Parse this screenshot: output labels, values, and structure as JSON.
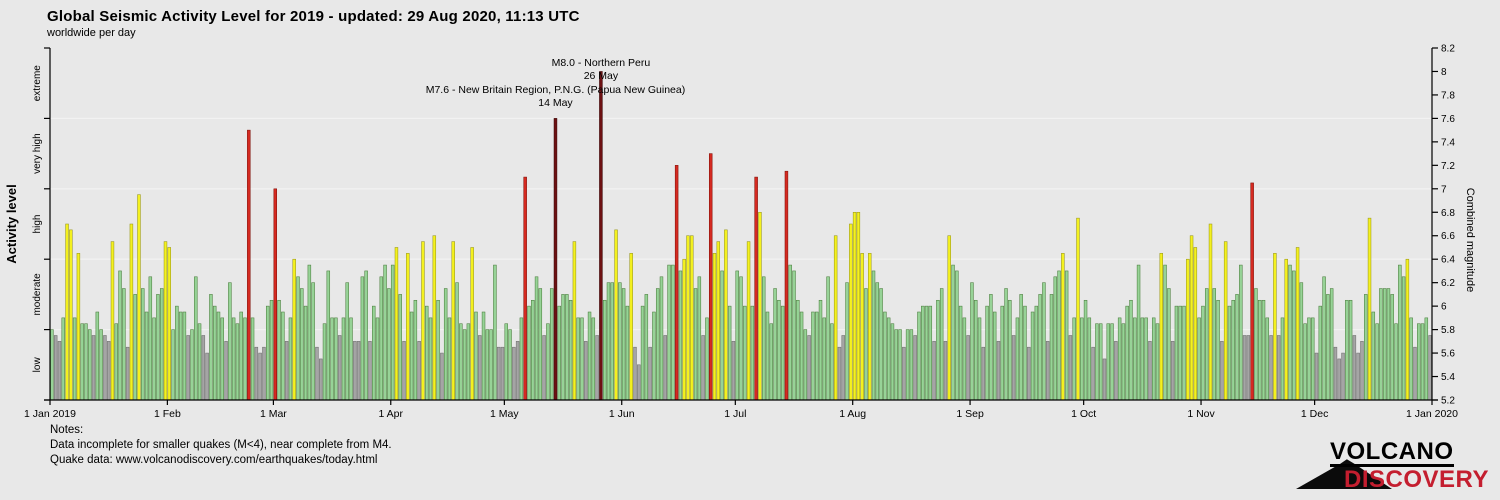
{
  "header": {
    "title": "Global Seismic Activity Level for 2019 - updated: 29 Aug 2020, 11:13 UTC",
    "subtitle": "worldwide per day"
  },
  "colors": {
    "background": "#e8e8e8",
    "gridline": "#f2f2f2",
    "axis": "#000000",
    "low": "#a5a5a5",
    "low_border": "#6f6f6f",
    "moderate": "#97d397",
    "moderate_border": "#4a7d3c",
    "high": "#f4f11f",
    "high_border": "#98961c",
    "very_high": "#d52a21",
    "very_high_border": "#811109",
    "extreme": "#6d1012",
    "extreme_border": "#3a0707",
    "logo_red": "#c41e2f"
  },
  "notes": {
    "heading": "Notes:",
    "line1": "Data incomplete for smaller quakes (M<4), near complete from M4.",
    "line2": "Quake data: www.volcanodiscovery.com/earthquakes/today.html"
  },
  "logo": {
    "line1": "VOLCANO",
    "line2": "DISCOVERY"
  },
  "chart_data": {
    "type": "bar",
    "title": "Global Seismic Activity Level for 2019 - updated: 29 Aug 2020, 11:13 UTC",
    "subtitle": "worldwide per day",
    "x_unit": "day",
    "x_start": "1 Jan 2019",
    "x_end": "1 Jan 2020",
    "ylabel_left": "Activity level",
    "ylabel_right": "Combined magnitude",
    "ylim": [
      5.2,
      8.2
    ],
    "right_tick_step": 0.2,
    "activity_levels": [
      "extreme",
      "very high",
      "high",
      "moderate",
      "low"
    ],
    "level_ranges": {
      "low": [
        5.2,
        5.8
      ],
      "moderate": [
        5.8,
        6.4
      ],
      "high": [
        6.4,
        7.0
      ],
      "very_high": [
        7.0,
        7.6
      ],
      "extreme": [
        7.6,
        8.2
      ]
    },
    "month_ticks": [
      {
        "label": "1 Jan 2019",
        "day": 0
      },
      {
        "label": "1 Feb",
        "day": 31
      },
      {
        "label": "1 Mar",
        "day": 59
      },
      {
        "label": "1 Apr",
        "day": 90
      },
      {
        "label": "1 May",
        "day": 120
      },
      {
        "label": "1 Jun",
        "day": 151
      },
      {
        "label": "1 Jul",
        "day": 181
      },
      {
        "label": "1 Aug",
        "day": 212
      },
      {
        "label": "1 Sep",
        "day": 243
      },
      {
        "label": "1 Oct",
        "day": 273
      },
      {
        "label": "1 Nov",
        "day": 304
      },
      {
        "label": "1 Dec",
        "day": 334
      },
      {
        "label": "1 Jan 2020",
        "day": 365
      }
    ],
    "annotations": [
      {
        "lines": [
          "M8.0 - Northern Peru",
          "26 May"
        ],
        "day_index": 145,
        "magnitude": 8.0
      },
      {
        "lines": [
          "M7.6 - New Britain Region, P.N.G. (Papua New Guinea)",
          "14 May"
        ],
        "day_index": 133,
        "magnitude": 7.6
      }
    ],
    "daily_combined_magnitude": [
      5.8,
      5.75,
      5.7,
      5.9,
      6.7,
      6.65,
      5.9,
      6.45,
      5.85,
      5.85,
      5.8,
      5.75,
      5.95,
      5.8,
      5.75,
      5.7,
      6.55,
      5.85,
      6.3,
      6.15,
      5.65,
      6.7,
      6.1,
      6.95,
      6.15,
      5.95,
      6.25,
      5.9,
      6.1,
      6.15,
      6.55,
      6.5,
      5.8,
      6.0,
      5.95,
      5.95,
      5.75,
      5.8,
      6.25,
      5.85,
      5.75,
      5.6,
      6.1,
      6.0,
      5.95,
      5.9,
      5.7,
      6.2,
      5.9,
      5.85,
      5.95,
      5.9,
      7.5,
      5.9,
      5.65,
      5.6,
      5.65,
      6.0,
      6.05,
      7.0,
      6.05,
      5.95,
      5.7,
      5.9,
      6.4,
      6.25,
      6.15,
      6.0,
      6.35,
      6.2,
      5.65,
      5.55,
      5.85,
      6.3,
      5.9,
      5.9,
      5.75,
      5.9,
      6.2,
      5.9,
      5.7,
      5.7,
      6.25,
      6.3,
      5.7,
      6.0,
      5.9,
      6.25,
      6.35,
      6.15,
      6.35,
      6.5,
      6.1,
      5.7,
      6.45,
      5.95,
      6.05,
      5.7,
      6.55,
      6.0,
      5.9,
      6.6,
      6.05,
      5.6,
      6.15,
      5.9,
      6.55,
      6.2,
      5.85,
      5.8,
      5.85,
      6.5,
      5.95,
      5.75,
      5.95,
      5.8,
      5.8,
      6.35,
      5.65,
      5.65,
      5.85,
      5.8,
      5.65,
      5.7,
      5.9,
      7.1,
      6.0,
      6.05,
      6.25,
      6.15,
      5.75,
      5.85,
      6.15,
      7.6,
      6.0,
      6.1,
      6.1,
      6.05,
      6.55,
      5.9,
      5.9,
      5.7,
      5.95,
      5.9,
      5.75,
      8.0,
      6.05,
      6.2,
      6.2,
      6.65,
      6.2,
      6.15,
      6.0,
      6.45,
      5.65,
      5.5,
      6.0,
      6.1,
      5.65,
      5.95,
      6.15,
      6.25,
      5.75,
      6.35,
      6.35,
      7.2,
      6.3,
      6.4,
      6.6,
      6.6,
      6.15,
      6.25,
      5.75,
      5.9,
      7.3,
      6.45,
      6.55,
      6.3,
      6.65,
      6.0,
      5.7,
      6.3,
      6.25,
      6.0,
      6.55,
      6.0,
      7.1,
      6.8,
      6.25,
      5.95,
      5.85,
      6.15,
      6.05,
      6.0,
      7.15,
      6.35,
      6.3,
      6.05,
      5.95,
      5.8,
      5.75,
      5.95,
      5.95,
      6.05,
      5.9,
      6.25,
      5.85,
      6.6,
      5.65,
      5.75,
      6.2,
      6.7,
      6.8,
      6.8,
      6.45,
      6.15,
      6.45,
      6.3,
      6.2,
      6.15,
      5.95,
      5.9,
      5.85,
      5.8,
      5.8,
      5.65,
      5.8,
      5.8,
      5.75,
      5.95,
      6.0,
      6.0,
      6.0,
      5.7,
      6.05,
      6.15,
      5.7,
      6.6,
      6.35,
      6.3,
      6.0,
      5.9,
      5.75,
      6.2,
      6.05,
      5.9,
      5.65,
      6.0,
      6.1,
      5.95,
      5.7,
      6.0,
      6.15,
      6.05,
      5.75,
      5.9,
      6.1,
      6.0,
      5.65,
      5.95,
      6.0,
      6.1,
      6.2,
      5.7,
      6.1,
      6.25,
      6.3,
      6.45,
      6.3,
      5.75,
      5.9,
      6.75,
      5.9,
      6.05,
      5.9,
      5.65,
      5.85,
      5.85,
      5.55,
      5.85,
      5.85,
      5.7,
      5.9,
      5.85,
      6.0,
      6.05,
      5.9,
      6.35,
      5.9,
      5.9,
      5.7,
      5.9,
      5.85,
      6.45,
      6.35,
      6.15,
      5.7,
      6.0,
      6.0,
      6.0,
      6.4,
      6.6,
      6.5,
      5.9,
      6.0,
      6.15,
      6.7,
      6.15,
      6.05,
      5.7,
      6.55,
      6.0,
      6.05,
      6.1,
      6.35,
      5.75,
      5.75,
      7.05,
      6.15,
      6.05,
      6.05,
      5.9,
      5.75,
      6.45,
      5.75,
      5.9,
      6.4,
      6.35,
      6.3,
      6.5,
      6.2,
      5.85,
      5.9,
      5.9,
      5.6,
      6.0,
      6.25,
      6.1,
      6.15,
      5.65,
      5.55,
      5.6,
      6.05,
      6.05,
      5.75,
      5.6,
      5.7,
      6.1,
      6.75,
      5.95,
      5.85,
      6.15,
      6.15,
      6.15,
      6.1,
      5.85,
      6.35,
      6.25,
      6.4,
      5.9,
      5.65,
      5.85,
      5.85,
      5.9,
      5.75
    ]
  }
}
